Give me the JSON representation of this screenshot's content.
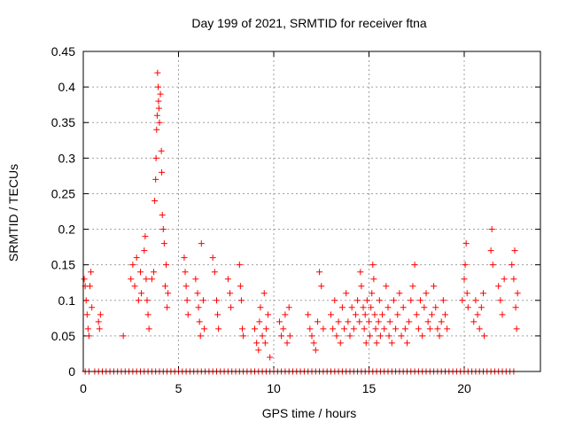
{
  "chart_data": {
    "type": "scatter",
    "title": "Day 199 of 2021, SRMTID for receiver ftna",
    "xlabel": "GPS time / hours",
    "ylabel": "SRMTID / TECUs",
    "xlim": [
      0,
      24
    ],
    "ylim": [
      0,
      0.45
    ],
    "x_ticks": [
      0,
      5,
      10,
      15,
      20
    ],
    "y_ticks": [
      0,
      0.05,
      0.1,
      0.15,
      0.2,
      0.25,
      0.3,
      0.35,
      0.4,
      0.45
    ],
    "x_tick_labels": [
      "0",
      "5",
      "10",
      "15",
      "20"
    ],
    "y_tick_labels": [
      "0",
      "0.05",
      "0.1",
      "0.15",
      "0.2",
      "0.25",
      "0.3",
      "0.35",
      "0.4",
      "0.45"
    ],
    "grid": true,
    "marker": "+",
    "color": "#ff0000",
    "series": [
      {
        "points": [
          [
            0.05,
            0.13
          ],
          [
            0.1,
            0.12
          ],
          [
            0.15,
            0.1
          ],
          [
            0.2,
            0.08
          ],
          [
            0.25,
            0.06
          ],
          [
            0.3,
            0.05
          ],
          [
            0.35,
            0.12
          ],
          [
            0.4,
            0.14
          ],
          [
            0.45,
            0.09
          ],
          [
            0.8,
            0.07
          ],
          [
            0.85,
            0.06
          ],
          [
            0.9,
            0.08
          ],
          [
            2.1,
            0.05
          ],
          [
            2.5,
            0.13
          ],
          [
            2.6,
            0.15
          ],
          [
            2.7,
            0.12
          ],
          [
            2.8,
            0.16
          ],
          [
            2.9,
            0.1
          ],
          [
            3.0,
            0.14
          ],
          [
            3.05,
            0.11
          ],
          [
            3.2,
            0.17
          ],
          [
            3.25,
            0.19
          ],
          [
            3.3,
            0.13
          ],
          [
            3.35,
            0.1
          ],
          [
            3.4,
            0.08
          ],
          [
            3.45,
            0.06
          ],
          [
            3.6,
            0.13
          ],
          [
            3.7,
            0.14
          ],
          [
            3.75,
            0.24
          ],
          [
            3.8,
            0.27
          ],
          [
            3.82,
            0.3
          ],
          [
            3.85,
            0.34
          ],
          [
            3.88,
            0.36
          ],
          [
            3.9,
            0.42
          ],
          [
            3.93,
            0.4
          ],
          [
            3.95,
            0.38
          ],
          [
            3.97,
            0.37
          ],
          [
            4.0,
            0.35
          ],
          [
            4.05,
            0.39
          ],
          [
            4.1,
            0.31
          ],
          [
            4.12,
            0.28
          ],
          [
            4.15,
            0.22
          ],
          [
            4.2,
            0.2
          ],
          [
            4.25,
            0.18
          ],
          [
            4.3,
            0.12
          ],
          [
            4.35,
            0.15
          ],
          [
            4.4,
            0.09
          ],
          [
            4.45,
            0.11
          ],
          [
            5.3,
            0.16
          ],
          [
            5.35,
            0.14
          ],
          [
            5.4,
            0.12
          ],
          [
            5.45,
            0.1
          ],
          [
            5.5,
            0.08
          ],
          [
            5.9,
            0.13
          ],
          [
            6.0,
            0.11
          ],
          [
            6.05,
            0.09
          ],
          [
            6.1,
            0.07
          ],
          [
            6.15,
            0.05
          ],
          [
            6.2,
            0.18
          ],
          [
            6.3,
            0.1
          ],
          [
            6.35,
            0.06
          ],
          [
            6.8,
            0.16
          ],
          [
            6.9,
            0.14
          ],
          [
            7.0,
            0.1
          ],
          [
            7.05,
            0.08
          ],
          [
            7.1,
            0.06
          ],
          [
            7.6,
            0.13
          ],
          [
            7.7,
            0.11
          ],
          [
            7.75,
            0.09
          ],
          [
            8.2,
            0.15
          ],
          [
            8.25,
            0.12
          ],
          [
            8.3,
            0.1
          ],
          [
            8.35,
            0.06
          ],
          [
            8.4,
            0.05
          ],
          [
            9.0,
            0.06
          ],
          [
            9.1,
            0.04
          ],
          [
            9.2,
            0.03
          ],
          [
            9.25,
            0.07
          ],
          [
            9.3,
            0.09
          ],
          [
            9.4,
            0.05
          ],
          [
            9.5,
            0.11
          ],
          [
            9.55,
            0.04
          ],
          [
            9.6,
            0.06
          ],
          [
            9.7,
            0.08
          ],
          [
            9.8,
            0.02
          ],
          [
            10.3,
            0.07
          ],
          [
            10.4,
            0.05
          ],
          [
            10.5,
            0.06
          ],
          [
            10.6,
            0.08
          ],
          [
            10.7,
            0.04
          ],
          [
            10.8,
            0.09
          ],
          [
            10.85,
            0.05
          ],
          [
            11.8,
            0.08
          ],
          [
            11.9,
            0.06
          ],
          [
            12.0,
            0.05
          ],
          [
            12.1,
            0.04
          ],
          [
            12.2,
            0.03
          ],
          [
            12.3,
            0.07
          ],
          [
            12.4,
            0.14
          ],
          [
            12.5,
            0.12
          ],
          [
            12.6,
            0.06
          ],
          [
            13.0,
            0.08
          ],
          [
            13.1,
            0.06
          ],
          [
            13.2,
            0.1
          ],
          [
            13.3,
            0.05
          ],
          [
            13.4,
            0.07
          ],
          [
            13.5,
            0.04
          ],
          [
            13.6,
            0.09
          ],
          [
            13.7,
            0.06
          ],
          [
            13.8,
            0.11
          ],
          [
            13.9,
            0.07
          ],
          [
            14.0,
            0.05
          ],
          [
            14.1,
            0.09
          ],
          [
            14.2,
            0.06
          ],
          [
            14.3,
            0.08
          ],
          [
            14.4,
            0.1
          ],
          [
            14.5,
            0.07
          ],
          [
            14.55,
            0.14
          ],
          [
            14.6,
            0.12
          ],
          [
            14.7,
            0.09
          ],
          [
            14.75,
            0.06
          ],
          [
            14.8,
            0.08
          ],
          [
            14.85,
            0.04
          ],
          [
            14.9,
            0.1
          ],
          [
            15.0,
            0.07
          ],
          [
            15.05,
            0.05
          ],
          [
            15.1,
            0.09
          ],
          [
            15.15,
            0.11
          ],
          [
            15.2,
            0.15
          ],
          [
            15.25,
            0.13
          ],
          [
            15.3,
            0.08
          ],
          [
            15.35,
            0.06
          ],
          [
            15.4,
            0.04
          ],
          [
            15.5,
            0.07
          ],
          [
            15.55,
            0.1
          ],
          [
            15.6,
            0.05
          ],
          [
            15.7,
            0.08
          ],
          [
            15.8,
            0.06
          ],
          [
            15.9,
            0.12
          ],
          [
            16.0,
            0.09
          ],
          [
            16.05,
            0.05
          ],
          [
            16.1,
            0.07
          ],
          [
            16.2,
            0.04
          ],
          [
            16.3,
            0.1
          ],
          [
            16.4,
            0.06
          ],
          [
            16.5,
            0.08
          ],
          [
            16.6,
            0.11
          ],
          [
            16.7,
            0.05
          ],
          [
            16.8,
            0.09
          ],
          [
            16.9,
            0.06
          ],
          [
            17.0,
            0.04
          ],
          [
            17.1,
            0.07
          ],
          [
            17.2,
            0.1
          ],
          [
            17.3,
            0.12
          ],
          [
            17.4,
            0.15
          ],
          [
            17.5,
            0.08
          ],
          [
            17.6,
            0.06
          ],
          [
            17.7,
            0.1
          ],
          [
            17.8,
            0.05
          ],
          [
            17.9,
            0.09
          ],
          [
            18.0,
            0.11
          ],
          [
            18.1,
            0.07
          ],
          [
            18.2,
            0.06
          ],
          [
            18.3,
            0.08
          ],
          [
            18.4,
            0.12
          ],
          [
            18.5,
            0.09
          ],
          [
            18.6,
            0.06
          ],
          [
            18.7,
            0.05
          ],
          [
            18.8,
            0.07
          ],
          [
            18.9,
            0.1
          ],
          [
            19.0,
            0.08
          ],
          [
            19.1,
            0.06
          ],
          [
            19.9,
            0.1
          ],
          [
            20.0,
            0.13
          ],
          [
            20.05,
            0.15
          ],
          [
            20.1,
            0.18
          ],
          [
            20.15,
            0.11
          ],
          [
            20.2,
            0.09
          ],
          [
            20.5,
            0.07
          ],
          [
            20.6,
            0.1
          ],
          [
            20.7,
            0.08
          ],
          [
            20.8,
            0.06
          ],
          [
            20.9,
            0.09
          ],
          [
            21.0,
            0.11
          ],
          [
            21.05,
            0.05
          ],
          [
            21.4,
            0.17
          ],
          [
            21.45,
            0.2
          ],
          [
            21.5,
            0.15
          ],
          [
            21.8,
            0.12
          ],
          [
            21.9,
            0.1
          ],
          [
            22.0,
            0.08
          ],
          [
            22.1,
            0.13
          ],
          [
            22.5,
            0.15
          ],
          [
            22.6,
            0.13
          ],
          [
            22.65,
            0.17
          ],
          [
            22.7,
            0.09
          ],
          [
            22.75,
            0.06
          ],
          [
            22.8,
            0.11
          ]
        ]
      }
    ],
    "zero_points_x": [
      0.1,
      0.3,
      0.6,
      0.8,
      1.0,
      1.2,
      1.4,
      1.6,
      1.8,
      2.0,
      2.2,
      2.4,
      2.6,
      2.8,
      3.0,
      3.2,
      3.4,
      3.6,
      3.8,
      4.0,
      4.2,
      4.4,
      4.6,
      4.8,
      5.0,
      5.2,
      5.4,
      5.6,
      5.8,
      6.0,
      6.2,
      6.4,
      6.6,
      6.8,
      7.0,
      7.2,
      7.4,
      7.6,
      7.8,
      8.0,
      8.2,
      8.4,
      8.6,
      8.8,
      9.0,
      9.2,
      9.4,
      9.6,
      9.8,
      10.0,
      10.2,
      10.4,
      10.6,
      10.8,
      11.0,
      11.2,
      11.4,
      11.6,
      11.8,
      12.0,
      12.2,
      12.4,
      12.6,
      12.8,
      13.0,
      13.2,
      13.4,
      13.6,
      13.8,
      14.0,
      14.2,
      14.4,
      14.6,
      14.8,
      15.0,
      15.2,
      15.4,
      15.6,
      15.8,
      16.0,
      16.2,
      16.4,
      16.6,
      16.8,
      17.0,
      17.2,
      17.4,
      17.6,
      17.8,
      18.0,
      18.2,
      18.4,
      18.6,
      18.8,
      19.0,
      19.2,
      19.4,
      19.6,
      19.8,
      20.0,
      20.2,
      20.4,
      20.6,
      20.8,
      21.0,
      21.2,
      21.4,
      21.6,
      21.8,
      22.0,
      22.2,
      22.4,
      22.6
    ]
  }
}
